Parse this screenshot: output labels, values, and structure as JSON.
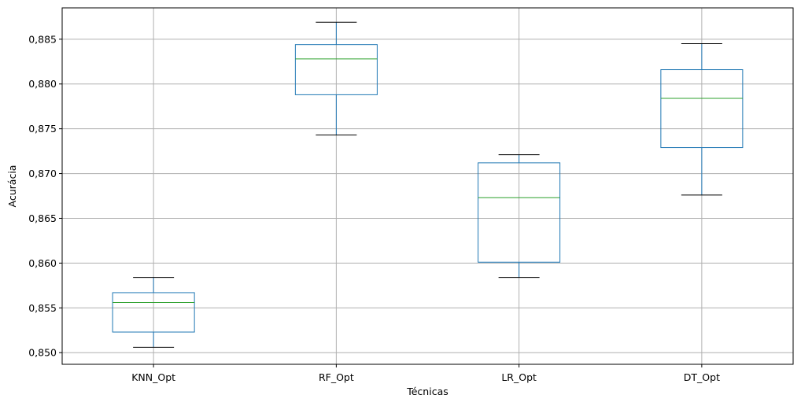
{
  "chart_data": {
    "type": "boxplot",
    "xlabel": "Técnicas",
    "ylabel": "Acurácia",
    "ylim": [
      0.8487,
      0.8885
    ],
    "yticks": [
      0.85,
      0.855,
      0.86,
      0.865,
      0.87,
      0.875,
      0.88,
      0.885
    ],
    "ytick_labels": [
      "0,850",
      "0,855",
      "0,860",
      "0,865",
      "0,870",
      "0,875",
      "0,880",
      "0,885"
    ],
    "grid": true,
    "categories": [
      "KNN_Opt",
      "RF_Opt",
      "LR_Opt",
      "DT_Opt"
    ],
    "boxes": [
      {
        "name": "KNN_Opt",
        "whislo": 0.8506,
        "q1": 0.8523,
        "med": 0.8556,
        "q3": 0.8567,
        "whishi": 0.8584
      },
      {
        "name": "RF_Opt",
        "whislo": 0.8743,
        "q1": 0.8788,
        "med": 0.8828,
        "q3": 0.8844,
        "whishi": 0.8869
      },
      {
        "name": "LR_Opt",
        "whislo": 0.8584,
        "q1": 0.8601,
        "med": 0.8673,
        "q3": 0.8712,
        "whishi": 0.8721
      },
      {
        "name": "DT_Opt",
        "whislo": 0.8676,
        "q1": 0.8729,
        "med": 0.8784,
        "q3": 0.8816,
        "whishi": 0.8845
      }
    ],
    "colors": {
      "box": "#1f77b4",
      "median": "#2ca02c",
      "whisker_cap": "#000000",
      "grid": "#b0b0b0"
    }
  }
}
